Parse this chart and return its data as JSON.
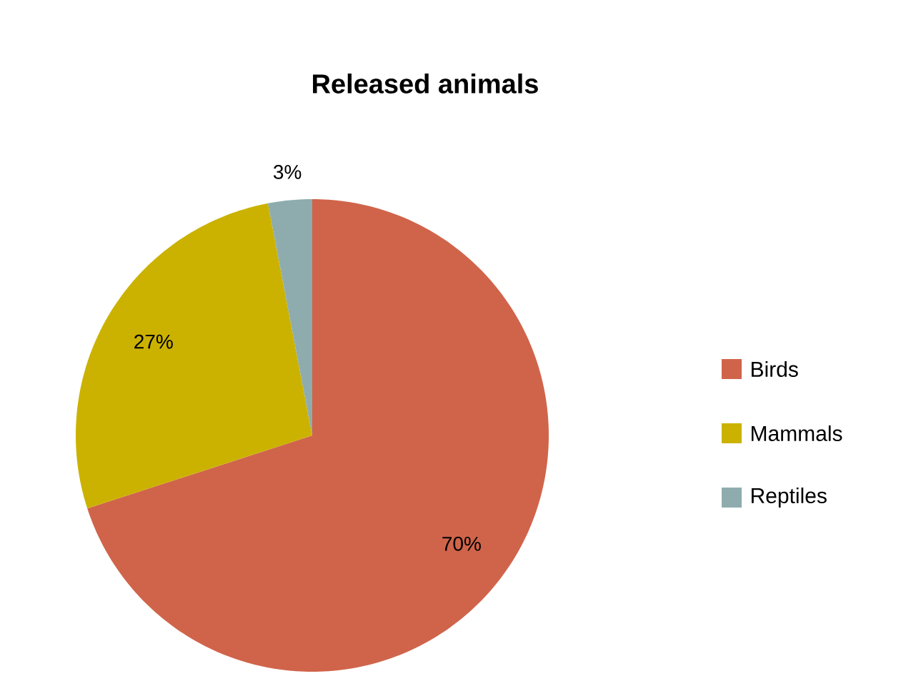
{
  "chart_data": {
    "type": "pie",
    "title": "Released animals",
    "categories": [
      "Birds",
      "Mammals",
      "Reptiles"
    ],
    "values": [
      70,
      27,
      3
    ],
    "colors": [
      "#d0644a",
      "#cbb200",
      "#8eacae"
    ],
    "value_labels": [
      "70%",
      "27%",
      "3%"
    ],
    "legend": "right"
  }
}
